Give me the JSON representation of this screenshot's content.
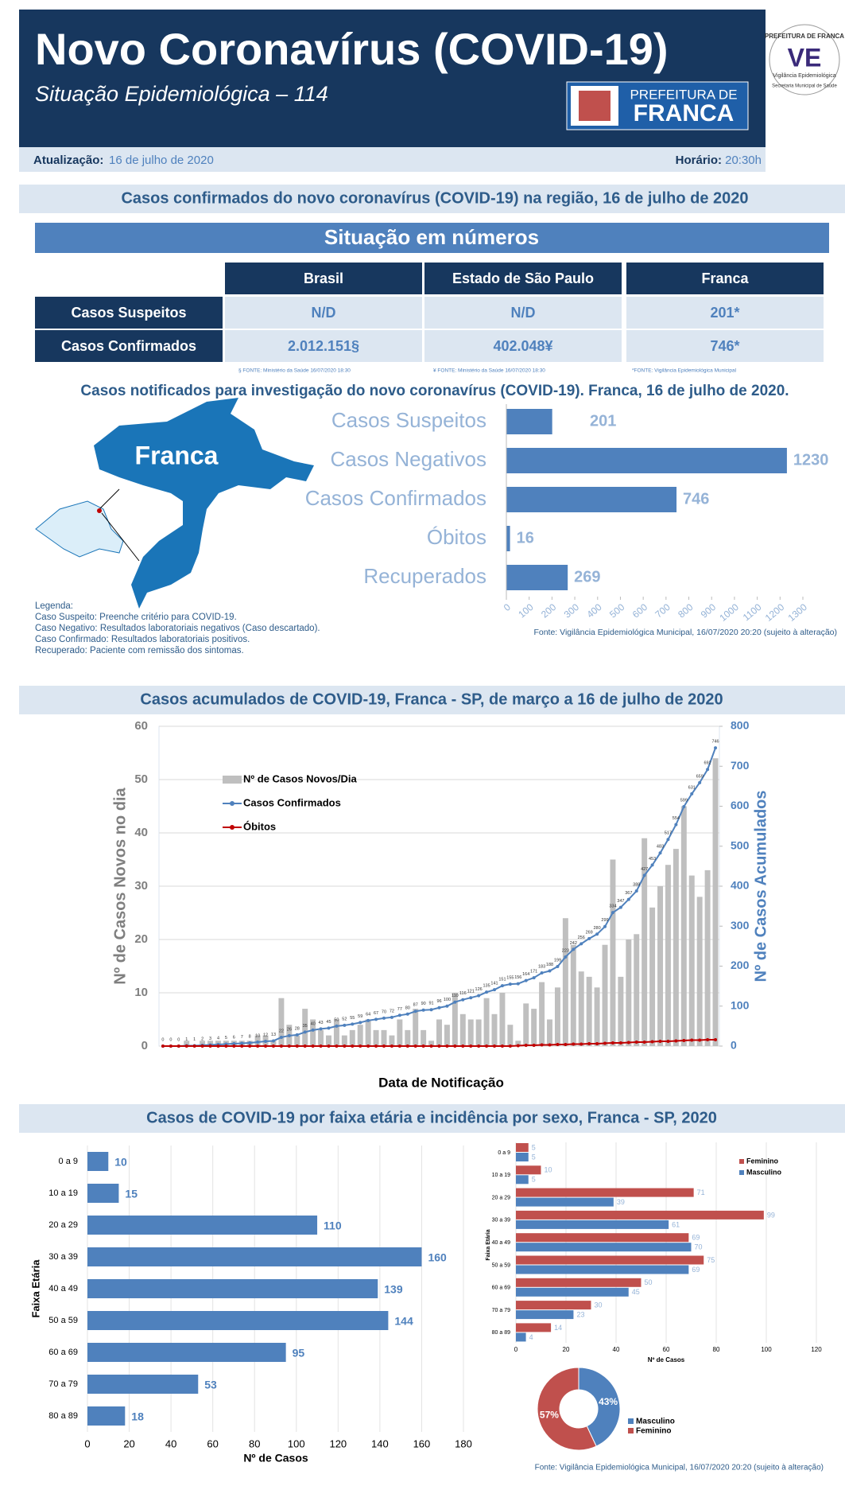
{
  "header": {
    "title": "Novo Coronavírus (COVID-19)",
    "subtitle": "Situação Epidemiológica – 114",
    "logo_top": "PREFEITURA DE",
    "logo_bottom": "FRANCA",
    "seal_top": "PREFEITURA DE FRANCA",
    "seal_middle": "Vigilância Epidemiológica",
    "seal_bottom": "Secretaria Municipal de Saúde"
  },
  "update": {
    "label": "Atualização:",
    "date": "16 de julho de 2020",
    "time_label": "Horário:",
    "time": "20:30h"
  },
  "section1": "Casos confirmados do novo coronavírus (COVID-19) na região, 16 de julho de 2020",
  "numbers": {
    "title": "Situação em números",
    "columns": [
      "Brasil",
      "Estado de São Paulo",
      "Franca"
    ],
    "rows": [
      {
        "label": "Casos Suspeitos",
        "cells": [
          "N/D",
          "N/D",
          "201*"
        ]
      },
      {
        "label": "Casos Confirmados",
        "cells": [
          "2.012.151§",
          "402.048¥",
          "746*"
        ]
      }
    ],
    "footnotes": [
      "§ FONTE: Ministério da Saúde 16/07/2020 18:30",
      "¥ FONTE: Ministério da Saúde 16/07/2020 18:30",
      "*FONTE: Vigilância Epidemiológica Municipal"
    ]
  },
  "map_label": "Franca",
  "legend_notes": {
    "title": "Legenda:",
    "lines": [
      "Caso Suspeito: Preenche critério para COVID-19.",
      "Caso Negativo: Resultados laboratoriais negativos (Caso descartado).",
      "Caso Confirmado: Resultados laboratoriais positivos.",
      "Recuperado: Paciente com remissão dos sintomas."
    ]
  },
  "chart_data": [
    {
      "type": "hbar",
      "title": "Casos notificados para investigação do novo coronavírus (COVID-19). Franca, 16 de julho de 2020.",
      "categories": [
        "Casos Suspeitos",
        "Casos Negativos",
        "Casos Confirmados",
        "Óbitos",
        "Recuperados"
      ],
      "values": [
        201,
        1230,
        746,
        16,
        269
      ],
      "color": "#4f81bd",
      "xlim": [
        0,
        1300
      ],
      "xticks": [
        0,
        100,
        200,
        300,
        400,
        500,
        600,
        700,
        800,
        900,
        1000,
        1100,
        1200,
        1300
      ],
      "source": "Fonte: Vigilância Epidemiológica Municipal, 16/07/2020 20:20  (sujeito à alteração)"
    },
    {
      "type": "combo",
      "title": "Casos acumulados de COVID-19, Franca - SP, de março a 16 de julho de 2020",
      "x_label": "Data de Notificação",
      "y_label": "Nº de Casos Novos no dia",
      "y2_label": "Nº de Casos Acumulados",
      "ylim": [
        0,
        60
      ],
      "yticks": [
        0,
        10,
        20,
        30,
        40,
        50,
        60
      ],
      "y2lim": [
        0,
        800
      ],
      "y2ticks": [
        0,
        100,
        200,
        300,
        400,
        500,
        600,
        700,
        800
      ],
      "grid": true,
      "categories": [
        null,
        null,
        null,
        null,
        null,
        null,
        null,
        null,
        null,
        null,
        null,
        null,
        null,
        null,
        null,
        null,
        null,
        null,
        null,
        null,
        null,
        null,
        null,
        null,
        null,
        null,
        null,
        null,
        null,
        null,
        null,
        null,
        null,
        null,
        null,
        null,
        null,
        null,
        null,
        null,
        null,
        null,
        null,
        null,
        null,
        null,
        null,
        null,
        null,
        null,
        null,
        null,
        null,
        null,
        null,
        null,
        null,
        null,
        null,
        null,
        null,
        null,
        null,
        null,
        null,
        null,
        null,
        null,
        null,
        null,
        null
      ],
      "series": [
        {
          "name": "Nº de Casos Novos/Dia",
          "color": "#bfbfbf",
          "values": [
            0,
            0,
            0,
            1,
            0,
            1,
            1,
            1,
            1,
            1,
            1,
            1,
            2,
            2,
            1,
            9,
            4,
            2,
            7,
            5,
            3,
            2,
            5,
            2,
            3,
            4,
            5,
            3,
            3,
            2,
            5,
            3,
            7,
            3,
            1,
            5,
            4,
            10,
            6,
            5,
            5,
            9,
            6,
            10,
            4,
            1,
            8,
            7,
            12,
            5,
            11,
            24,
            19,
            14,
            13,
            11,
            19,
            35,
            13,
            20,
            21,
            39,
            26,
            30,
            34,
            37,
            45,
            32,
            28,
            33,
            54
          ]
        },
        {
          "name": "Casos Confirmados",
          "color": "#4f81bd",
          "axis": "y2",
          "values": [
            0,
            0,
            0,
            1,
            1,
            2,
            3,
            4,
            5,
            6,
            7,
            8,
            10,
            12,
            13,
            22,
            26,
            28,
            35,
            40,
            43,
            45,
            50,
            52,
            55,
            59,
            64,
            67,
            70,
            72,
            77,
            80,
            87,
            90,
            91,
            96,
            100,
            110,
            116,
            121,
            126,
            135,
            141,
            151,
            155,
            156,
            164,
            171,
            183,
            188,
            199,
            223,
            242,
            256,
            269,
            280,
            299,
            334,
            347,
            367,
            388,
            427,
            453,
            483,
            517,
            554,
            599,
            631,
            659,
            692,
            746
          ]
        },
        {
          "name": "Óbitos",
          "color": "#c00000",
          "axis": "y2",
          "values": [
            0,
            0,
            0,
            0,
            0,
            0,
            0,
            0,
            0,
            0,
            0,
            0,
            0,
            0,
            0,
            0,
            0,
            0,
            0,
            0,
            0,
            0,
            0,
            0,
            0,
            0,
            0,
            0,
            0,
            0,
            0,
            0,
            0,
            0,
            0,
            0,
            0,
            0,
            0,
            0,
            0,
            0,
            0,
            0,
            0,
            1,
            2,
            2,
            3,
            3,
            4,
            4,
            5,
            5,
            6,
            6,
            7,
            8,
            8,
            9,
            10,
            10,
            11,
            12,
            12,
            13,
            14,
            15,
            15,
            16,
            16
          ]
        }
      ]
    },
    {
      "type": "hbar",
      "title": "Casos de COVID-19 por faixa etária e incidência por sexo, Franca - SP, 2020",
      "x_label": "Nº de Casos",
      "y_label": "Faixa Etária",
      "categories": [
        "0 a 9",
        "10 a 19",
        "20 a 29",
        "30 a 39",
        "40 a 49",
        "50 a 59",
        "60  a 69",
        "70 a 79",
        "80 a 89"
      ],
      "values": [
        10,
        15,
        110,
        160,
        139,
        144,
        95,
        53,
        18
      ],
      "color": "#4f81bd",
      "xlim": [
        0,
        180
      ],
      "xticks": [
        0,
        20,
        40,
        60,
        80,
        100,
        120,
        140,
        160,
        180
      ],
      "grid": true
    },
    {
      "type": "grouped_hbar",
      "x_label": "Nº de Casos",
      "y_label": "Faixa Etária",
      "categories": [
        "0 a 9",
        "10 a 19",
        "20 a 29",
        "30 a 39",
        "40 a 49",
        "50 a 59",
        "60 a 69",
        "70 a 79",
        "80 a 89"
      ],
      "series": [
        {
          "name": "Feminino",
          "color": "#c0504d",
          "values": [
            5,
            10,
            71,
            99,
            69,
            75,
            50,
            30,
            14
          ]
        },
        {
          "name": "Masculino",
          "color": "#4f81bd",
          "values": [
            5,
            5,
            39,
            61,
            70,
            69,
            45,
            23,
            4
          ]
        }
      ],
      "xlim": [
        0,
        120
      ],
      "xticks": [
        0,
        20,
        40,
        60,
        80,
        100,
        120
      ],
      "grid": true
    },
    {
      "type": "donut",
      "categories": [
        "Masculino",
        "Feminino"
      ],
      "values": [
        43,
        57
      ],
      "value_labels": [
        "43%",
        "57%"
      ],
      "colors": [
        "#4f81bd",
        "#c0504d"
      ],
      "source": "Fonte: Vigilância Epidemiológica Municipal, 16/07/2020 20:20 (sujeito à alteração)"
    }
  ]
}
